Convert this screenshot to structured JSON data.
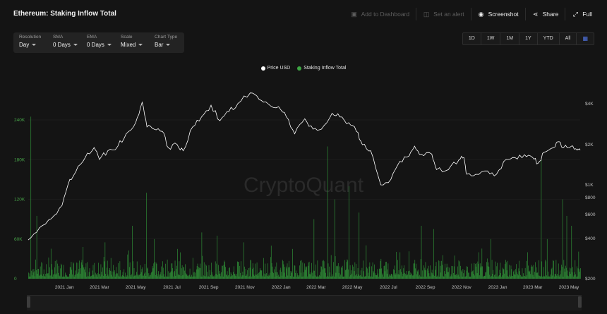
{
  "header": {
    "title": "Ethereum: Staking Inflow Total",
    "actions": [
      {
        "icon": "bookmark-icon",
        "label": "Add to Dashboard",
        "enabled": false
      },
      {
        "icon": "bell-icon",
        "label": "Set an alert",
        "enabled": false
      },
      {
        "icon": "camera-icon",
        "label": "Screenshot",
        "enabled": true
      },
      {
        "icon": "share-icon",
        "label": "Share",
        "enabled": true
      },
      {
        "icon": "expand-icon",
        "label": "Full",
        "enabled": true
      }
    ]
  },
  "controls": [
    {
      "label": "Resolution",
      "value": "Day"
    },
    {
      "label": "SMA",
      "value": "0 Days"
    },
    {
      "label": "EMA",
      "value": "0 Days"
    },
    {
      "label": "Scale",
      "value": "Mixed"
    },
    {
      "label": "Chart Type",
      "value": "Bar"
    }
  ],
  "ranges": [
    "1D",
    "1W",
    "1M",
    "1Y",
    "YTD",
    "All"
  ],
  "watermark": "CryptoQuant",
  "colors": {
    "bar": "#2e8b36",
    "price_line": "#ffffff",
    "legend_price": "#ffffff",
    "legend_inflow": "#3da643",
    "calendar": "#4f72e0"
  },
  "chart_data": {
    "type": "bar",
    "legend_position": "top-center",
    "grid": true,
    "x_range": [
      "2020-11-01",
      "2023-05-20"
    ],
    "x_ticks": [
      "2021 Jan",
      "2021 Mar",
      "2021 May",
      "2021 Jul",
      "2021 Sep",
      "2021 Nov",
      "2022 Jan",
      "2022 Mar",
      "2022 May",
      "2022 Jul",
      "2022 Sep",
      "2022 Nov",
      "2023 Jan",
      "2023 Mar",
      "2023 May"
    ],
    "y_left": {
      "ticks": [
        "0",
        "60K",
        "120K",
        "180K",
        "240K"
      ],
      "range": [
        0,
        240000
      ]
    },
    "y_right": {
      "scale": "log",
      "ticks": [
        "$4K",
        "$2K",
        "$1K",
        "$800",
        "$600",
        "$400",
        "$200"
      ]
    },
    "series": [
      {
        "name": "Staking Inflow Total",
        "kind": "bar",
        "axis": "left",
        "values_note_points": [
          [
            "2020-11-05",
            245000
          ],
          [
            "2020-11-15",
            95000
          ],
          [
            "2020-12-05",
            32000
          ],
          [
            "2021-01-15",
            25000
          ],
          [
            "2021-02-01",
            48000
          ],
          [
            "2021-03-10",
            55000
          ],
          [
            "2021-04-25",
            80000
          ],
          [
            "2021-05-19",
            130000
          ],
          [
            "2021-06-01",
            60000
          ],
          [
            "2021-07-10",
            45000
          ],
          [
            "2021-08-20",
            70000
          ],
          [
            "2021-09-15",
            65000
          ],
          [
            "2021-10-30",
            55000
          ],
          [
            "2021-12-15",
            50000
          ],
          [
            "2022-01-20",
            45000
          ],
          [
            "2022-02-25",
            90000
          ],
          [
            "2022-03-20",
            200000
          ],
          [
            "2022-04-01",
            120000
          ],
          [
            "2022-04-25",
            140000
          ],
          [
            "2022-05-12",
            100000
          ],
          [
            "2022-06-18",
            30000
          ],
          [
            "2022-07-20",
            40000
          ],
          [
            "2022-08-25",
            80000
          ],
          [
            "2022-09-15",
            75000
          ],
          [
            "2022-10-20",
            35000
          ],
          [
            "2022-11-30",
            40000
          ],
          [
            "2022-12-20",
            60000
          ],
          [
            "2023-01-15",
            25000
          ],
          [
            "2023-02-20",
            40000
          ],
          [
            "2023-03-15",
            180000
          ],
          [
            "2023-03-25",
            60000
          ],
          [
            "2023-04-20",
            120000
          ],
          [
            "2023-04-27",
            95000
          ],
          [
            "2023-05-05",
            80000
          ]
        ]
      },
      {
        "name": "Price USD",
        "kind": "line",
        "axis": "right",
        "points": [
          [
            "2020-11-01",
            390
          ],
          [
            "2020-11-20",
            480
          ],
          [
            "2020-12-10",
            560
          ],
          [
            "2020-12-28",
            700
          ],
          [
            "2021-01-10",
            1100
          ],
          [
            "2021-01-20",
            1250
          ],
          [
            "2021-02-05",
            1600
          ],
          [
            "2021-02-20",
            1900
          ],
          [
            "2021-03-01",
            1550
          ],
          [
            "2021-03-15",
            1800
          ],
          [
            "2021-04-01",
            1950
          ],
          [
            "2021-04-15",
            2400
          ],
          [
            "2021-05-01",
            2900
          ],
          [
            "2021-05-12",
            4100
          ],
          [
            "2021-05-20",
            2700
          ],
          [
            "2021-06-01",
            2600
          ],
          [
            "2021-06-15",
            2500
          ],
          [
            "2021-06-25",
            1900
          ],
          [
            "2021-07-10",
            2000
          ],
          [
            "2021-07-20",
            1800
          ],
          [
            "2021-08-05",
            2700
          ],
          [
            "2021-08-20",
            3200
          ],
          [
            "2021-09-05",
            3900
          ],
          [
            "2021-09-20",
            3000
          ],
          [
            "2021-10-05",
            3500
          ],
          [
            "2021-10-20",
            4000
          ],
          [
            "2021-11-10",
            4800
          ],
          [
            "2021-11-25",
            4300
          ],
          [
            "2021-12-10",
            4000
          ],
          [
            "2021-12-28",
            3800
          ],
          [
            "2022-01-10",
            3200
          ],
          [
            "2022-01-24",
            2400
          ],
          [
            "2022-02-10",
            3100
          ],
          [
            "2022-02-24",
            2600
          ],
          [
            "2022-03-10",
            2600
          ],
          [
            "2022-03-28",
            3400
          ],
          [
            "2022-04-10",
            3200
          ],
          [
            "2022-04-25",
            2900
          ],
          [
            "2022-05-08",
            2500
          ],
          [
            "2022-05-18",
            2000
          ],
          [
            "2022-06-01",
            1800
          ],
          [
            "2022-06-18",
            1000
          ],
          [
            "2022-07-05",
            1100
          ],
          [
            "2022-07-20",
            1500
          ],
          [
            "2022-08-05",
            1650
          ],
          [
            "2022-08-14",
            1950
          ],
          [
            "2022-08-25",
            1700
          ],
          [
            "2022-09-12",
            1700
          ],
          [
            "2022-09-20",
            1300
          ],
          [
            "2022-10-10",
            1300
          ],
          [
            "2022-10-28",
            1550
          ],
          [
            "2022-11-05",
            1600
          ],
          [
            "2022-11-10",
            1200
          ],
          [
            "2022-11-25",
            1200
          ],
          [
            "2022-12-15",
            1270
          ],
          [
            "2022-12-30",
            1200
          ],
          [
            "2023-01-15",
            1550
          ],
          [
            "2023-01-30",
            1600
          ],
          [
            "2023-02-15",
            1680
          ],
          [
            "2023-03-01",
            1600
          ],
          [
            "2023-03-10",
            1450
          ],
          [
            "2023-03-20",
            1750
          ],
          [
            "2023-04-05",
            1900
          ],
          [
            "2023-04-15",
            2100
          ],
          [
            "2023-04-22",
            1900
          ],
          [
            "2023-05-05",
            1950
          ],
          [
            "2023-05-15",
            1820
          ],
          [
            "2023-05-20",
            1820
          ]
        ]
      }
    ]
  },
  "navigator": {
    "labels": [
      "2021 Jan",
      "2021 May",
      "2021 Sep",
      "2022 Jan",
      "2022 May",
      "2022 Sep",
      "2023 Jan",
      "2023 May"
    ]
  }
}
